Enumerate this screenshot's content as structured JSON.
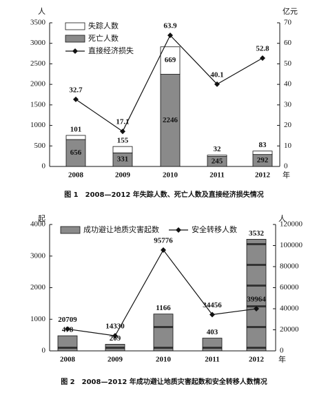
{
  "chart_data": [
    {
      "type": "bar",
      "stacked": true,
      "caption": "图 1　2008—2012 年失踪人数、死亡人数及直接经济损失情况",
      "y_label": "人",
      "y2_label": "亿元",
      "x_label": "年",
      "categories": [
        "2008",
        "2009",
        "2010",
        "2011",
        "2012"
      ],
      "series": [
        {
          "name": "死亡人数",
          "type": "bar",
          "color": "#8a8a8a",
          "values": [
            656,
            331,
            2246,
            245,
            292
          ]
        },
        {
          "name": "失踪人数",
          "type": "bar",
          "color": "#ffffff",
          "values": [
            101,
            155,
            669,
            32,
            83
          ]
        },
        {
          "name": "直接经济损失",
          "type": "line",
          "axis": "y2",
          "color": "#111111",
          "values": [
            32.7,
            17.1,
            63.9,
            40.1,
            52.8
          ]
        }
      ],
      "legend_order": [
        1,
        0,
        2
      ],
      "ylim": [
        0,
        3500
      ],
      "yticks": [
        0,
        500,
        1000,
        1500,
        2000,
        2500,
        3000,
        3500
      ],
      "y2lim": [
        0,
        70
      ],
      "y2ticks": [
        0,
        10,
        20,
        30,
        40,
        50,
        60,
        70
      ]
    },
    {
      "type": "bar",
      "stacked": false,
      "caption": "图 2　2008—2012 年成功避让地质灾害起数和安全转移人数情况",
      "y_label": "起",
      "y2_label": "人",
      "x_label": "年",
      "categories": [
        "2008",
        "2009",
        "2010",
        "2011",
        "2012"
      ],
      "series": [
        {
          "name": "成功避让地质灾害起数",
          "type": "bar",
          "color": "#8a8a8a",
          "values": [
            478,
            209,
            1166,
            403,
            3532
          ]
        },
        {
          "name": "安全转移人数",
          "type": "line",
          "axis": "y2",
          "color": "#111111",
          "values": [
            20709,
            14330,
            95776,
            34456,
            39964
          ]
        }
      ],
      "legend_order": [
        0,
        1
      ],
      "ylim": [
        0,
        4000
      ],
      "yticks": [
        0,
        1000,
        2000,
        3000,
        4000
      ],
      "y2lim": [
        0,
        120000
      ],
      "y2ticks": [
        0,
        20000,
        40000,
        60000,
        80000,
        100000,
        120000
      ]
    }
  ]
}
